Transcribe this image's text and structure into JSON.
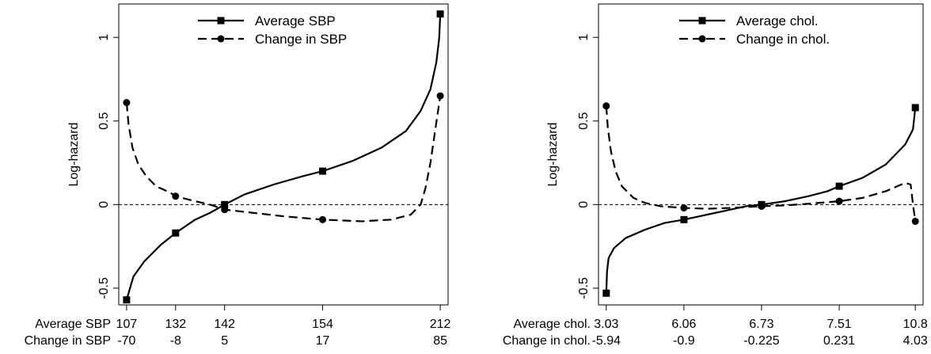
{
  "chart_data": [
    {
      "type": "line",
      "ylabel": "Log-hazard",
      "ylim": [
        -0.6,
        1.2
      ],
      "yticks": [
        -0.5,
        0,
        0.5,
        1
      ],
      "ytick_labels": [
        "-0.5",
        "0",
        "0.5",
        "1"
      ],
      "reference_line": 0,
      "grid": false,
      "legend_position": "top-center",
      "x_rows": [
        {
          "label": "Average SBP",
          "ticks": [
            "107",
            "132",
            "142",
            "154",
            "212"
          ]
        },
        {
          "label": "Change in SBP",
          "ticks": [
            "-70",
            "-8",
            "5",
            "17",
            "85"
          ]
        }
      ],
      "series": [
        {
          "name": "Average SBP",
          "style": "solid",
          "marker": "square",
          "points": [
            [
              0,
              -0.57
            ],
            [
              0.07,
              -0.43
            ],
            [
              0.18,
              -0.34
            ],
            [
              0.35,
              -0.24
            ],
            [
              0.5,
              -0.17
            ],
            [
              0.7,
              -0.09
            ],
            [
              0.85,
              -0.05
            ],
            [
              1,
              0
            ],
            [
              1.2,
              0.06
            ],
            [
              1.5,
              0.12
            ],
            [
              1.8,
              0.17
            ],
            [
              2,
              0.2
            ],
            [
              2.3,
              0.26
            ],
            [
              2.6,
              0.34
            ],
            [
              2.85,
              0.44
            ],
            [
              3.0,
              0.56
            ],
            [
              3.1,
              0.69
            ],
            [
              3.16,
              0.85
            ],
            [
              3.19,
              1.0
            ],
            [
              3.2,
              1.14
            ]
          ],
          "markers": [
            [
              0,
              -0.57
            ],
            [
              0.5,
              -0.17
            ],
            [
              1,
              0
            ],
            [
              2,
              0.2
            ],
            [
              3.2,
              1.14
            ]
          ]
        },
        {
          "name": "Change in SBP",
          "style": "dashed",
          "marker": "circle",
          "points": [
            [
              0,
              0.61
            ],
            [
              0.02,
              0.48
            ],
            [
              0.06,
              0.34
            ],
            [
              0.12,
              0.24
            ],
            [
              0.2,
              0.17
            ],
            [
              0.3,
              0.11
            ],
            [
              0.45,
              0.07
            ],
            [
              0.5,
              0.05
            ],
            [
              0.7,
              0.02
            ],
            [
              0.85,
              0.0
            ],
            [
              1,
              -0.03
            ],
            [
              1.3,
              -0.05
            ],
            [
              1.6,
              -0.07
            ],
            [
              2,
              -0.09
            ],
            [
              2.4,
              -0.1
            ],
            [
              2.7,
              -0.09
            ],
            [
              2.9,
              -0.06
            ],
            [
              3.0,
              0.0
            ],
            [
              3.05,
              0.1
            ],
            [
              3.1,
              0.25
            ],
            [
              3.15,
              0.45
            ],
            [
              3.2,
              0.65
            ]
          ],
          "markers": [
            [
              0,
              0.61
            ],
            [
              0.5,
              0.05
            ],
            [
              1,
              -0.03
            ],
            [
              2,
              -0.09
            ],
            [
              3.2,
              0.65
            ]
          ]
        }
      ]
    },
    {
      "type": "line",
      "ylabel": "Log-hazard",
      "ylim": [
        -0.6,
        1.2
      ],
      "yticks": [
        -0.5,
        0,
        0.5,
        1
      ],
      "ytick_labels": [
        "-0.5",
        "0",
        "0.5",
        "1"
      ],
      "reference_line": 0,
      "grid": false,
      "legend_position": "top-center",
      "x_rows": [
        {
          "label": "Average chol.",
          "ticks": [
            "3.03",
            "6.06",
            "6.73",
            "7.51",
            "10.8"
          ]
        },
        {
          "label": "Change in chol.",
          "ticks": [
            "-5.94",
            "-0.9",
            "-0.225",
            "0.231",
            "4.03"
          ]
        }
      ],
      "series": [
        {
          "name": "Average chol.",
          "style": "solid",
          "marker": "square",
          "points": [
            [
              0,
              -0.53
            ],
            [
              0.01,
              -0.4
            ],
            [
              0.03,
              -0.32
            ],
            [
              0.1,
              -0.26
            ],
            [
              0.25,
              -0.2
            ],
            [
              0.5,
              -0.15
            ],
            [
              0.75,
              -0.11
            ],
            [
              1,
              -0.09
            ],
            [
              1.3,
              -0.06
            ],
            [
              1.6,
              -0.03
            ],
            [
              1.8,
              -0.01
            ],
            [
              2,
              0
            ],
            [
              2.3,
              0.02
            ],
            [
              2.6,
              0.05
            ],
            [
              2.85,
              0.08
            ],
            [
              3,
              0.11
            ],
            [
              3.3,
              0.16
            ],
            [
              3.6,
              0.24
            ],
            [
              3.85,
              0.36
            ],
            [
              3.95,
              0.45
            ],
            [
              3.98,
              0.58
            ]
          ],
          "markers": [
            [
              0,
              -0.53
            ],
            [
              1,
              -0.09
            ],
            [
              2,
              0
            ],
            [
              3,
              0.11
            ],
            [
              3.98,
              0.58
            ]
          ]
        },
        {
          "name": "Change in chol.",
          "style": "dashed",
          "marker": "circle",
          "points": [
            [
              0,
              0.59
            ],
            [
              0.02,
              0.46
            ],
            [
              0.06,
              0.32
            ],
            [
              0.12,
              0.2
            ],
            [
              0.2,
              0.11
            ],
            [
              0.35,
              0.04
            ],
            [
              0.5,
              0.01
            ],
            [
              0.7,
              -0.01
            ],
            [
              1,
              -0.02
            ],
            [
              1.3,
              -0.025
            ],
            [
              1.6,
              -0.02
            ],
            [
              2,
              -0.01
            ],
            [
              2.3,
              -0.005
            ],
            [
              2.6,
              0.005
            ],
            [
              3,
              0.02
            ],
            [
              3.3,
              0.04
            ],
            [
              3.6,
              0.08
            ],
            [
              3.85,
              0.13
            ],
            [
              3.92,
              0.12
            ],
            [
              3.95,
              0.0
            ],
            [
              3.98,
              -0.1
            ]
          ],
          "markers": [
            [
              0,
              0.59
            ],
            [
              1,
              -0.02
            ],
            [
              2,
              -0.01
            ],
            [
              3,
              0.02
            ],
            [
              3.98,
              -0.1
            ]
          ]
        }
      ]
    }
  ]
}
